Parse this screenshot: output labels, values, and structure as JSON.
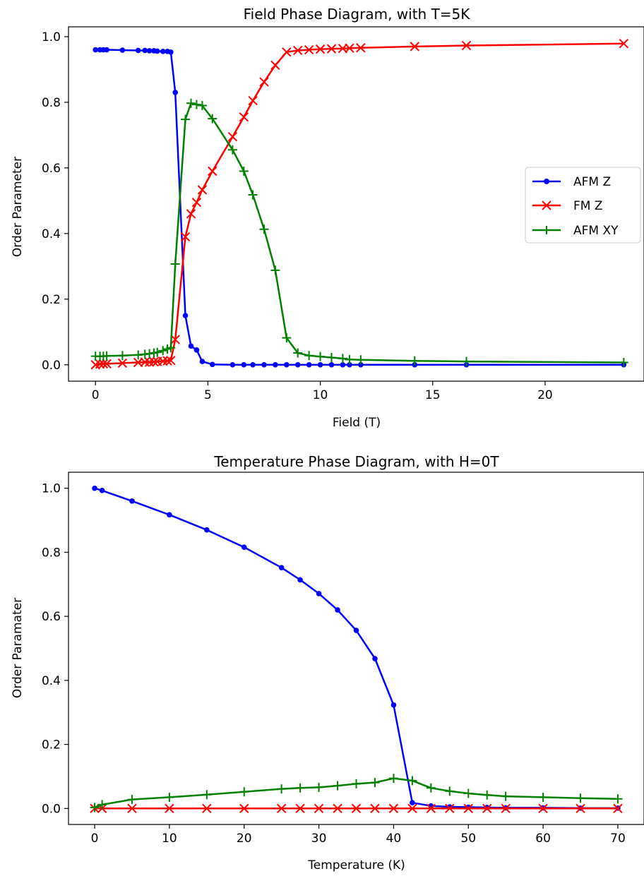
{
  "chart_data": [
    {
      "type": "line",
      "title": "Field Phase Diagram, with T=5K",
      "xlabel": "Field (T)",
      "ylabel": "Order Parameter",
      "xlim": [
        -1.2,
        24.4
      ],
      "ylim": [
        -0.05,
        1.03
      ],
      "xticks": [
        0,
        5,
        10,
        15,
        20
      ],
      "xtick_labels": [
        "0",
        "5",
        "10",
        "15",
        "20"
      ],
      "yticks": [
        0.0,
        0.2,
        0.4,
        0.6,
        0.8,
        1.0
      ],
      "ytick_labels": [
        "0.0",
        "0.2",
        "0.4",
        "0.6",
        "0.8",
        "1.0"
      ],
      "grid": false,
      "legend": {
        "placement": "center-right",
        "entries": [
          "AFM Z",
          "FM Z",
          "AFM XY"
        ]
      },
      "series": [
        {
          "name": "AFM Z",
          "color": "#0000ff",
          "marker": "circle",
          "x": [
            0,
            0.2,
            0.35,
            0.5,
            1.2,
            1.9,
            2.2,
            2.4,
            2.6,
            2.75,
            3.0,
            3.2,
            3.35,
            3.55,
            4.0,
            4.25,
            4.5,
            4.75,
            5.2,
            6.1,
            6.6,
            7.0,
            7.5,
            8.0,
            8.5,
            9.0,
            9.5,
            10.0,
            10.5,
            11.0,
            11.3,
            11.8,
            14.2,
            16.5,
            23.5
          ],
          "y": [
            0.96,
            0.96,
            0.96,
            0.96,
            0.959,
            0.958,
            0.958,
            0.957,
            0.957,
            0.956,
            0.955,
            0.955,
            0.953,
            0.83,
            0.15,
            0.057,
            0.045,
            0.01,
            0.001,
            0.0,
            0.0,
            0.0,
            0.0,
            0.0,
            0.0,
            0.0,
            0.0,
            0.0,
            0.0,
            0.0,
            0.0,
            0.0,
            0.0,
            0.0,
            0.0
          ]
        },
        {
          "name": "FM Z",
          "color": "#ff0000",
          "marker": "x",
          "x": [
            0,
            0.2,
            0.35,
            0.5,
            1.2,
            1.9,
            2.2,
            2.4,
            2.6,
            2.75,
            3.0,
            3.2,
            3.35,
            3.55,
            4.0,
            4.25,
            4.5,
            4.75,
            5.2,
            6.1,
            6.6,
            7.0,
            7.5,
            8.0,
            8.5,
            9.0,
            9.5,
            10.0,
            10.5,
            11.0,
            11.3,
            11.8,
            14.2,
            16.5,
            23.5
          ],
          "y": [
            0.0,
            0.002,
            0.003,
            0.003,
            0.005,
            0.007,
            0.008,
            0.008,
            0.009,
            0.01,
            0.011,
            0.012,
            0.013,
            0.077,
            0.39,
            0.46,
            0.495,
            0.533,
            0.59,
            0.695,
            0.755,
            0.805,
            0.862,
            0.913,
            0.953,
            0.958,
            0.96,
            0.962,
            0.963,
            0.964,
            0.965,
            0.966,
            0.97,
            0.973,
            0.979
          ]
        },
        {
          "name": "AFM XY",
          "color": "#008000",
          "marker": "plus",
          "x": [
            0,
            0.2,
            0.35,
            0.5,
            1.2,
            1.9,
            2.2,
            2.4,
            2.6,
            2.75,
            3.0,
            3.2,
            3.35,
            3.55,
            4.0,
            4.25,
            4.5,
            4.75,
            5.2,
            6.1,
            6.6,
            7.0,
            7.5,
            8.0,
            8.5,
            9.0,
            9.5,
            10.0,
            10.5,
            11.0,
            11.3,
            11.8,
            14.2,
            16.5,
            23.5
          ],
          "y": [
            0.026,
            0.026,
            0.026,
            0.027,
            0.028,
            0.03,
            0.032,
            0.034,
            0.036,
            0.038,
            0.043,
            0.048,
            0.052,
            0.307,
            0.748,
            0.797,
            0.793,
            0.79,
            0.75,
            0.655,
            0.59,
            0.518,
            0.413,
            0.288,
            0.082,
            0.036,
            0.028,
            0.025,
            0.022,
            0.019,
            0.016,
            0.015,
            0.012,
            0.01,
            0.007
          ]
        }
      ]
    },
    {
      "type": "line",
      "title": "Temperature Phase Diagram, with H=0T",
      "xlabel": "Temperature (K)",
      "ylabel": "Order Paramater",
      "xlim": [
        -3.5,
        73.5
      ],
      "ylim": [
        -0.05,
        1.05
      ],
      "xticks": [
        0,
        10,
        20,
        30,
        40,
        50,
        60,
        70
      ],
      "xtick_labels": [
        "0",
        "10",
        "20",
        "30",
        "40",
        "50",
        "60",
        "70"
      ],
      "yticks": [
        0.0,
        0.2,
        0.4,
        0.6,
        0.8,
        1.0
      ],
      "ytick_labels": [
        "0.0",
        "0.2",
        "0.4",
        "0.6",
        "0.8",
        "1.0"
      ],
      "grid": false,
      "series": [
        {
          "name": "AFM Z",
          "color": "#0000ff",
          "marker": "circle",
          "x": [
            0,
            1,
            5,
            10,
            15,
            20,
            25,
            27.5,
            30,
            32.5,
            35,
            37.5,
            40,
            42.5,
            45,
            47.5,
            50,
            52.5,
            55,
            60,
            65,
            70
          ],
          "y": [
            1.0,
            0.993,
            0.96,
            0.917,
            0.87,
            0.816,
            0.752,
            0.714,
            0.671,
            0.62,
            0.556,
            0.468,
            0.323,
            0.018,
            0.008,
            0.005,
            0.004,
            0.003,
            0.002,
            0.002,
            0.001,
            0.001
          ]
        },
        {
          "name": "FM Z",
          "color": "#ff0000",
          "marker": "x",
          "x": [
            0,
            1,
            5,
            10,
            15,
            20,
            25,
            27.5,
            30,
            32.5,
            35,
            37.5,
            40,
            42.5,
            45,
            47.5,
            50,
            52.5,
            55,
            60,
            65,
            70
          ],
          "y": [
            0.0,
            0.0,
            0.0,
            0.0,
            0.0,
            0.0,
            0.0,
            0.0,
            0.0,
            0.0,
            0.0,
            0.0,
            0.0,
            0.0,
            0.0,
            0.0,
            0.0,
            0.0,
            0.0,
            0.0,
            0.0,
            0.0
          ]
        },
        {
          "name": "AFM XY",
          "color": "#008000",
          "marker": "plus",
          "x": [
            0,
            1,
            5,
            10,
            15,
            20,
            25,
            27.5,
            30,
            32.5,
            35,
            37.5,
            40,
            42.5,
            45,
            47.5,
            50,
            52.5,
            55,
            60,
            65,
            70
          ],
          "y": [
            0.003,
            0.012,
            0.028,
            0.035,
            0.043,
            0.052,
            0.061,
            0.064,
            0.066,
            0.071,
            0.077,
            0.081,
            0.094,
            0.087,
            0.064,
            0.054,
            0.047,
            0.042,
            0.038,
            0.035,
            0.032,
            0.03
          ]
        }
      ]
    }
  ]
}
